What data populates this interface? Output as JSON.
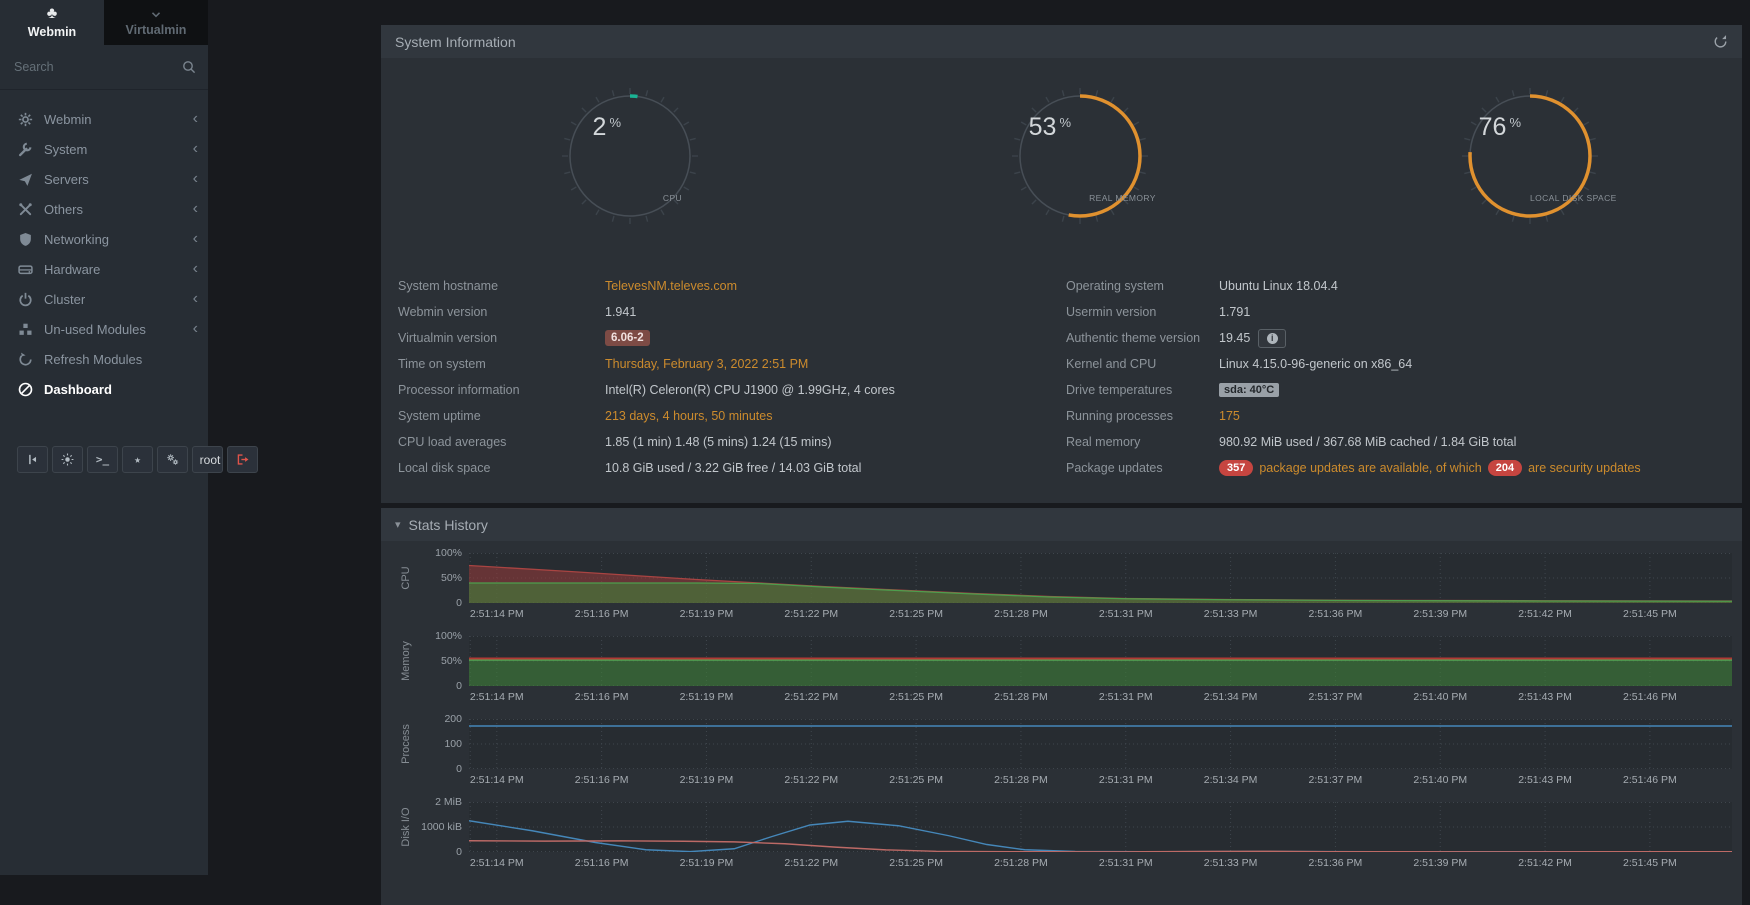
{
  "sidebar": {
    "tabs": [
      {
        "label": "Webmin",
        "icon": "webmin-logo",
        "active": true
      },
      {
        "label": "Virtualmin",
        "icon": "chevron-down",
        "active": false
      }
    ],
    "search_placeholder": "Search",
    "menu": [
      {
        "label": "Webmin",
        "icon": "gear",
        "caret": true
      },
      {
        "label": "System",
        "icon": "wrench",
        "caret": true
      },
      {
        "label": "Servers",
        "icon": "send",
        "caret": true
      },
      {
        "label": "Others",
        "icon": "tools",
        "caret": true
      },
      {
        "label": "Networking",
        "icon": "shield",
        "caret": true
      },
      {
        "label": "Hardware",
        "icon": "hdd",
        "caret": true
      },
      {
        "label": "Cluster",
        "icon": "power",
        "caret": true
      },
      {
        "label": "Un-used Modules",
        "icon": "modules",
        "caret": true
      },
      {
        "label": "Refresh Modules",
        "icon": "refresh",
        "caret": false
      },
      {
        "label": "Dashboard",
        "icon": "dashboard",
        "caret": false,
        "active": true
      }
    ],
    "footer_buttons": [
      {
        "name": "collapse-sidebar-button",
        "icon": "collapse"
      },
      {
        "name": "theme-mode-button",
        "icon": "sun"
      },
      {
        "name": "terminal-button",
        "glyph": ">_"
      },
      {
        "name": "favorites-button",
        "glyph": "★"
      },
      {
        "name": "options-button",
        "icon": "gears"
      },
      {
        "name": "user-button",
        "icon": "user",
        "label": "root"
      },
      {
        "name": "logout-button",
        "icon": "logout",
        "red": true
      }
    ]
  },
  "panel": {
    "title": "System Information"
  },
  "gauges": [
    {
      "value": "2",
      "unit": "%",
      "percent": 2,
      "label": "CPU",
      "color": "#1ab394"
    },
    {
      "value": "53",
      "unit": "%",
      "percent": 53,
      "label": "REAL MEMORY",
      "color": "#e0912f"
    },
    {
      "value": "76",
      "unit": "%",
      "percent": 76,
      "label": "LOCAL DISK SPACE",
      "color": "#e0912f"
    }
  ],
  "info": {
    "left": [
      {
        "label": "System hostname",
        "value": "TelevesNM.televes.com",
        "style": "link"
      },
      {
        "label": "Webmin version",
        "value": "1.941"
      },
      {
        "label": "Virtualmin version",
        "value": "6.06-2",
        "style": "badge-danger"
      },
      {
        "label": "Time on system",
        "value": "Thursday, February 3, 2022 2:51 PM",
        "style": "link"
      },
      {
        "label": "Processor information",
        "value": "Intel(R) Celeron(R) CPU J1900 @ 1.99GHz, 4 cores"
      },
      {
        "label": "System uptime",
        "value": "213 days, 4 hours, 50 minutes",
        "style": "link"
      },
      {
        "label": "CPU load averages",
        "value": "1.85 (1 min) 1.48 (5 mins) 1.24 (15 mins)"
      },
      {
        "label": "Local disk space",
        "value": "10.8 GiB used / 3.22 GiB free / 14.03 GiB total"
      }
    ],
    "right": [
      {
        "label": "Operating system",
        "value": "Ubuntu Linux 18.04.4"
      },
      {
        "label": "Usermin version",
        "value": "1.791"
      },
      {
        "label": "Authentic theme version",
        "value": "19.45",
        "extra_button": "info"
      },
      {
        "label": "Kernel and CPU",
        "value": "Linux 4.15.0-96-generic on x86_64"
      },
      {
        "label": "Drive temperatures",
        "value": "sda: 40°C",
        "style": "badge-gray"
      },
      {
        "label": "Running processes",
        "value": "175",
        "style": "link"
      },
      {
        "label": "Real memory",
        "value": "980.92 MiB used / 367.68 MiB cached / 1.84 GiB total"
      },
      {
        "label": "Package updates",
        "parts": [
          {
            "kind": "pill",
            "text": "357"
          },
          {
            "kind": "link",
            "text": "package updates are available, of which"
          },
          {
            "kind": "pill",
            "text": "204"
          },
          {
            "kind": "link",
            "text": "are security updates"
          }
        ]
      }
    ]
  },
  "stats": {
    "title": "Stats History"
  },
  "chart_data": [
    {
      "id": "cpu",
      "type": "area",
      "row_label": "CPU",
      "y_unit": "%",
      "ymax": 100,
      "ytick_labels": [
        "100%",
        "50%",
        "0"
      ],
      "grid": true,
      "legend": "none",
      "x_labels": [
        "2:51:14 PM",
        "2:51:16 PM",
        "2:51:19 PM",
        "2:51:22 PM",
        "2:51:25 PM",
        "2:51:28 PM",
        "2:51:31 PM",
        "2:51:33 PM",
        "2:51:36 PM",
        "2:51:39 PM",
        "2:51:42 PM",
        "2:51:45 PM"
      ],
      "series": [
        {
          "name": "cpu-total-with-system",
          "style": "area",
          "color": "#a94442",
          "fill": "rgba(154,60,58,0.55)",
          "width": 1.3,
          "points": [
            [
              0,
              75
            ],
            [
              0.08,
              63
            ],
            [
              0.13,
              55
            ],
            [
              0.18,
              47
            ],
            [
              0.23,
              40
            ],
            [
              0.28,
              33
            ],
            [
              0.33,
              27
            ],
            [
              0.4,
              19
            ],
            [
              0.46,
              13
            ],
            [
              0.52,
              9
            ],
            [
              0.6,
              7
            ],
            [
              0.7,
              5.5
            ],
            [
              0.85,
              4.5
            ],
            [
              1,
              4
            ]
          ]
        },
        {
          "name": "cpu-user",
          "style": "area",
          "color": "#4d9e4d",
          "fill": "rgba(64,128,58,0.6)",
          "width": 1.3,
          "points": [
            [
              0,
              40
            ],
            [
              0.08,
              40
            ],
            [
              0.13,
              40
            ],
            [
              0.18,
              40
            ],
            [
              0.23,
              39
            ],
            [
              0.28,
              32
            ],
            [
              0.33,
              26
            ],
            [
              0.4,
              18
            ],
            [
              0.46,
              12
            ],
            [
              0.52,
              8.5
            ],
            [
              0.6,
              6.5
            ],
            [
              0.7,
              5
            ],
            [
              0.85,
              4
            ],
            [
              1,
              3.5
            ]
          ]
        }
      ]
    },
    {
      "id": "memory",
      "type": "area",
      "row_label": "Memory",
      "y_unit": "%",
      "ymax": 100,
      "ytick_labels": [
        "100%",
        "50%",
        "0"
      ],
      "grid": true,
      "legend": "none",
      "x_labels": [
        "2:51:14 PM",
        "2:51:16 PM",
        "2:51:19 PM",
        "2:51:22 PM",
        "2:51:25 PM",
        "2:51:28 PM",
        "2:51:31 PM",
        "2:51:34 PM",
        "2:51:37 PM",
        "2:51:40 PM",
        "2:51:43 PM",
        "2:51:46 PM"
      ],
      "series": [
        {
          "name": "memory-used",
          "style": "area",
          "color": "#55a555",
          "fill": "rgba(64,128,58,0.6)",
          "width": 1.5,
          "points": [
            [
              0,
              52
            ],
            [
              1,
              52
            ]
          ]
        },
        {
          "name": "memory-cached",
          "style": "line",
          "color": "#b03a35",
          "width": 2,
          "points": [
            [
              0,
              55
            ],
            [
              1,
              55
            ]
          ]
        }
      ]
    },
    {
      "id": "process",
      "type": "line",
      "row_label": "Process",
      "y_unit": "count",
      "ymax": 200,
      "ytick_labels": [
        "200",
        "100",
        "0"
      ],
      "grid": true,
      "legend": "none",
      "x_labels": [
        "2:51:14 PM",
        "2:51:16 PM",
        "2:51:19 PM",
        "2:51:22 PM",
        "2:51:25 PM",
        "2:51:28 PM",
        "2:51:31 PM",
        "2:51:34 PM",
        "2:51:37 PM",
        "2:51:40 PM",
        "2:51:43 PM",
        "2:51:46 PM"
      ],
      "series": [
        {
          "name": "running-processes",
          "style": "line",
          "color": "#4587b9",
          "width": 1.4,
          "points": [
            [
              0,
              172
            ],
            [
              1,
              172
            ]
          ]
        }
      ]
    },
    {
      "id": "disk-io",
      "type": "line",
      "row_label": "Disk I/O",
      "y_unit": "kiB",
      "ymax": 2000,
      "ytick_labels": [
        "2 MiB",
        "1000 kiB",
        "0"
      ],
      "grid": true,
      "legend": "none",
      "x_labels": [
        "2:51:14 PM",
        "2:51:16 PM",
        "2:51:19 PM",
        "2:51:22 PM",
        "2:51:25 PM",
        "2:51:28 PM",
        "2:51:31 PM",
        "2:51:33 PM",
        "2:51:36 PM",
        "2:51:39 PM",
        "2:51:42 PM",
        "2:51:45 PM"
      ],
      "series": [
        {
          "name": "disk-read",
          "style": "line",
          "color": "#4587b9",
          "width": 1.4,
          "points": [
            [
              0,
              1250
            ],
            [
              0.05,
              850
            ],
            [
              0.1,
              380
            ],
            [
              0.14,
              90
            ],
            [
              0.175,
              15
            ],
            [
              0.21,
              130
            ],
            [
              0.24,
              620
            ],
            [
              0.27,
              1080
            ],
            [
              0.3,
              1230
            ],
            [
              0.34,
              1050
            ],
            [
              0.38,
              650
            ],
            [
              0.41,
              300
            ],
            [
              0.44,
              90
            ],
            [
              0.48,
              20
            ],
            [
              0.55,
              12
            ],
            [
              0.62,
              22
            ],
            [
              0.72,
              10
            ],
            [
              0.85,
              12
            ],
            [
              1,
              8
            ]
          ]
        },
        {
          "name": "disk-write",
          "style": "line",
          "color": "#bd6a66",
          "width": 1.4,
          "points": [
            [
              0,
              450
            ],
            [
              0.06,
              435
            ],
            [
              0.12,
              445
            ],
            [
              0.17,
              430
            ],
            [
              0.21,
              405
            ],
            [
              0.25,
              330
            ],
            [
              0.29,
              195
            ],
            [
              0.33,
              85
            ],
            [
              0.37,
              28
            ],
            [
              0.43,
              10
            ],
            [
              0.52,
              8
            ],
            [
              0.58,
              22
            ],
            [
              0.63,
              28
            ],
            [
              0.68,
              12
            ],
            [
              0.8,
              8
            ],
            [
              0.9,
              12
            ],
            [
              1,
              10
            ]
          ]
        }
      ]
    }
  ]
}
